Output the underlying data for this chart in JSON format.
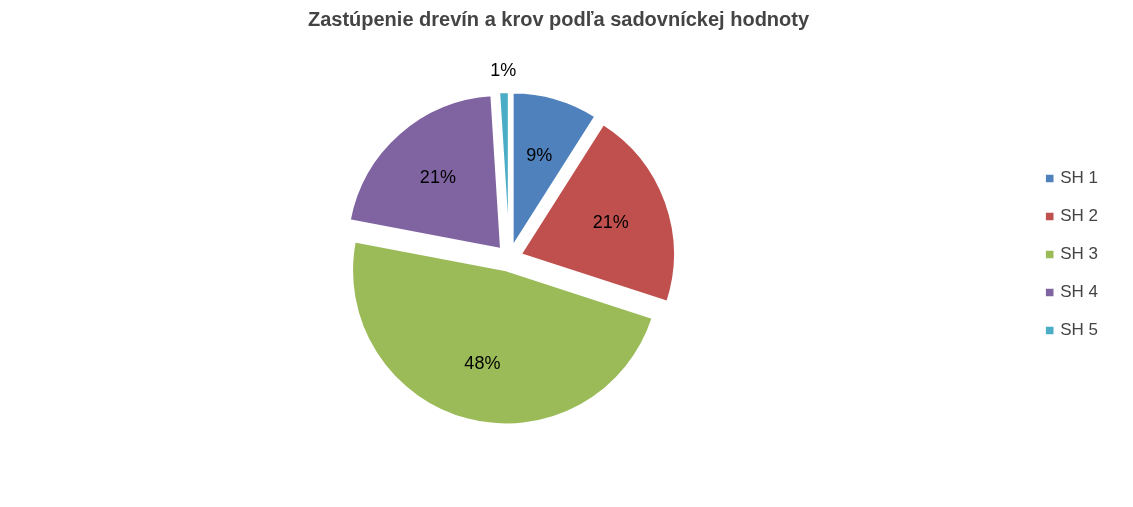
{
  "chart_data": {
    "type": "pie",
    "title": "Zastúpenie drevín a krov podľa sadovníckej hodnoty",
    "categories": [
      "SH 1",
      "SH 2",
      "SH 3",
      "SH 4",
      "SH 5"
    ],
    "values": [
      9,
      21,
      48,
      21,
      1
    ],
    "colors": [
      "#4f81bd",
      "#c0504d",
      "#9bbb59",
      "#8064a2",
      "#4bacc6"
    ],
    "value_labels": [
      "9%",
      "21%",
      "48%",
      "21%",
      "1%"
    ],
    "legend": "right"
  }
}
